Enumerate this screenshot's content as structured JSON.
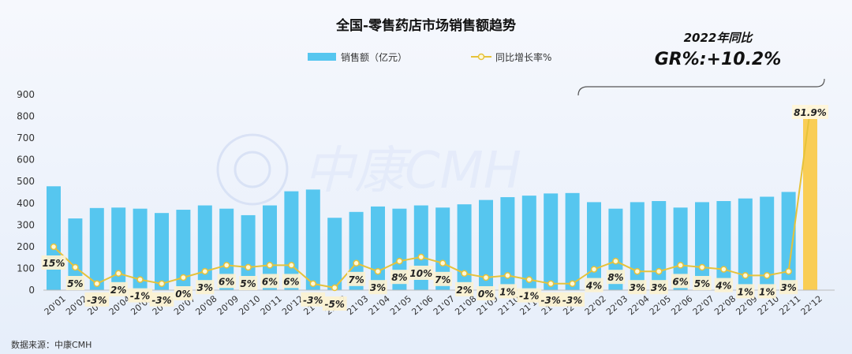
{
  "chart_data": {
    "type": "bar",
    "title": "全国-零售药店市场销售额趋势",
    "categories": [
      "20'01",
      "20'02",
      "20'03",
      "20'04",
      "20'05",
      "20'06",
      "20'07",
      "20'08",
      "20'09",
      "20'10",
      "20'11",
      "20'12",
      "21'01",
      "21'02",
      "21'03",
      "21'04",
      "21'05",
      "21'06",
      "21'07",
      "21'08",
      "21'09",
      "21'10",
      "21'11",
      "21'12",
      "22'01",
      "22'02",
      "22'03",
      "22'04",
      "22'05",
      "22'06",
      "22'07",
      "22'08",
      "22'09",
      "22'10",
      "22'11",
      "22'12"
    ],
    "series": [
      {
        "name": "销售额（亿元）",
        "kind": "bar",
        "values": [
          478,
          330,
          378,
          380,
          375,
          355,
          370,
          390,
          375,
          345,
          390,
          455,
          463,
          333,
          360,
          385,
          375,
          390,
          380,
          395,
          415,
          428,
          435,
          445,
          447,
          405,
          375,
          405,
          410,
          380,
          405,
          410,
          422,
          430,
          452,
          800
        ],
        "colors": {
          "bar": "#56c6ef",
          "highlight": "#f9cd55",
          "highlight_index": 35
        }
      },
      {
        "name": "同比增长率%",
        "kind": "line",
        "values": [
          15,
          5,
          -3,
          2,
          -1,
          -3,
          0,
          3,
          6,
          5,
          6,
          6,
          -3,
          -5,
          7,
          3,
          8,
          10,
          7,
          2,
          0,
          1,
          -1,
          -3,
          -3,
          4,
          8,
          3,
          3,
          6,
          5,
          4,
          1,
          1,
          3,
          81.9
        ],
        "labels": [
          "15%",
          "5%",
          "-3%",
          "2%",
          "-1%",
          "-3%",
          "0%",
          "3%",
          "6%",
          "5%",
          "6%",
          "6%",
          "-3%",
          "-5%",
          "7%",
          "3%",
          "8%",
          "10%",
          "7%",
          "2%",
          "0%",
          "1%",
          "-1%",
          "-3%",
          "-3%",
          "4%",
          "8%",
          "3%",
          "3%",
          "6%",
          "5%",
          "4%",
          "1%",
          "1%",
          "3%",
          "81.9%"
        ],
        "color": "#e6c23a"
      }
    ],
    "y_ticks": [
      "0",
      "100",
      "200",
      "300",
      "400",
      "500",
      "600",
      "700",
      "800",
      "900"
    ],
    "ylim": [
      0,
      900
    ],
    "legend_position": "top",
    "grid": false
  },
  "annotation": {
    "line1": "2022年同比",
    "line2": "GR%:+10.2%"
  },
  "source": "数据来源：中康CMH",
  "watermark": "中康CMH"
}
